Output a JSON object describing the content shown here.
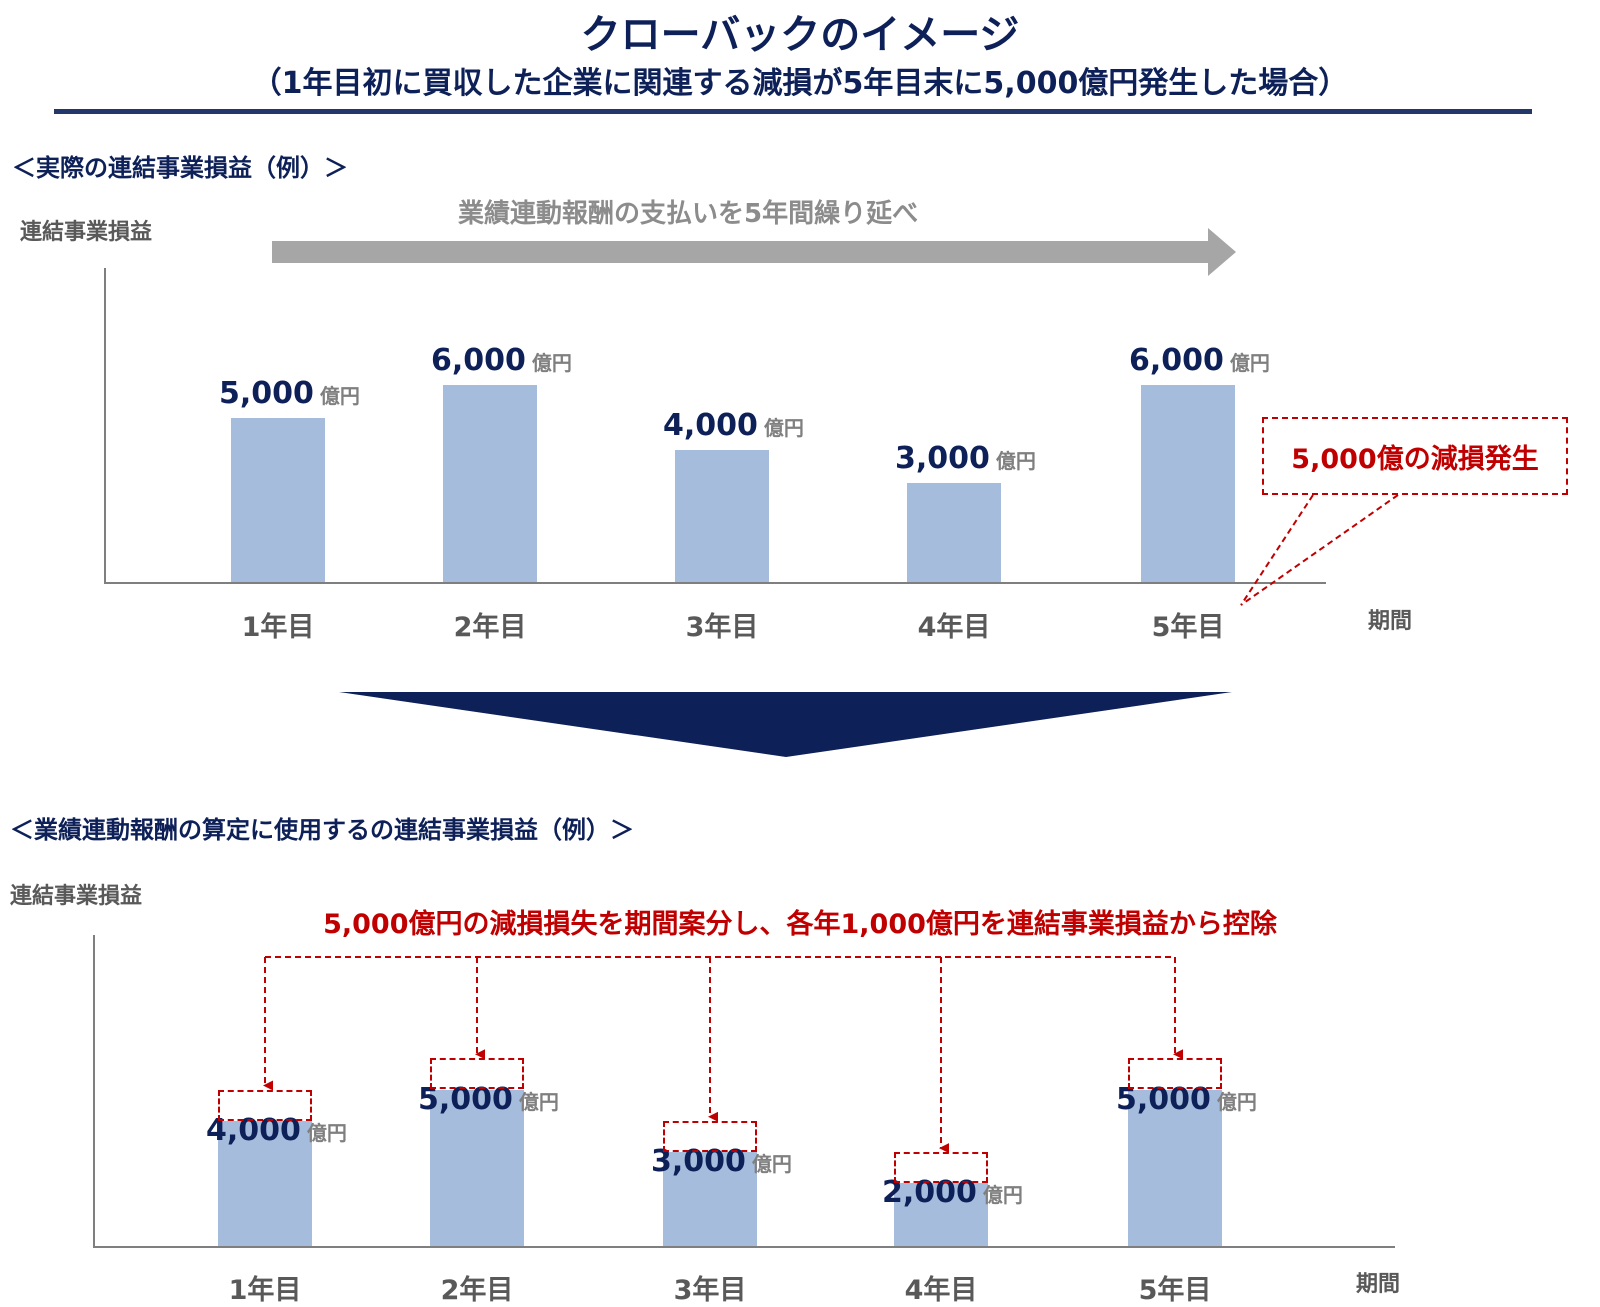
{
  "title": "クローバックのイメージ",
  "subtitle": "（1年目初に買収した企業に関連する減損が5年目末に5,000億円発生した場合）",
  "colors": {
    "navy": "#0e2058",
    "bar": "#a6bcdd",
    "red": "#c00000",
    "gray": "#595959",
    "arrow_gray": "#a6a6a6"
  },
  "top_section": {
    "heading": "＜実際の連結事業損益（例）＞",
    "y_axis_title": "連結事業損益",
    "x_axis_title": "期間",
    "arrow_label": "業績連動報酬の支払いを5年間繰り延べ",
    "callout": "5,000億の減損発生"
  },
  "bottom_section": {
    "heading": "＜業績連動報酬の算定に使用するの連結事業損益（例）＞",
    "y_axis_title": "連結事業損益",
    "x_axis_title": "期間",
    "note": "5,000億円の減損損失を期間案分し、各年1,000億円を連結事業損益から控除"
  },
  "chart_data": [
    {
      "type": "bar",
      "title": "＜実際の連結事業損益（例）＞",
      "ylabel": "連結事業損益",
      "xlabel": "期間",
      "categories": [
        "1年目",
        "2年目",
        "3年目",
        "4年目",
        "5年目"
      ],
      "values": [
        5000,
        6000,
        4000,
        3000,
        6000
      ],
      "value_labels": [
        "5,000",
        "6,000",
        "4,000",
        "3,000",
        "6,000"
      ],
      "unit": "億円",
      "ylim": [
        0,
        7000
      ],
      "grid": false,
      "annotation": "5,000億の減損発生"
    },
    {
      "type": "bar",
      "title": "＜業績連動報酬の算定に使用するの連結事業損益（例）＞",
      "ylabel": "連結事業損益",
      "xlabel": "期間",
      "categories": [
        "1年目",
        "2年目",
        "3年目",
        "4年目",
        "5年目"
      ],
      "values": [
        4000,
        5000,
        3000,
        2000,
        5000
      ],
      "value_labels": [
        "4,000",
        "5,000",
        "3,000",
        "2,000",
        "5,000"
      ],
      "deducted": [
        1000,
        1000,
        1000,
        1000,
        1000
      ],
      "unit": "億円",
      "ylim": [
        0,
        8000
      ],
      "grid": false,
      "annotation": "5,000億円の減損損失を期間案分し、各年1,000億円を連結事業損益から控除"
    }
  ]
}
